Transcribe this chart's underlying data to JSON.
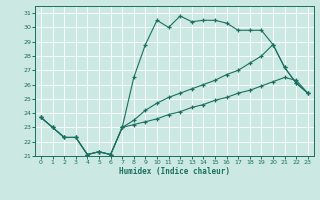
{
  "xlabel": "Humidex (Indice chaleur)",
  "bg_color": "#cce8e2",
  "line_color": "#1a7060",
  "grid_color": "#ffffff",
  "xlim": [
    -0.5,
    23.5
  ],
  "ylim": [
    21,
    31.5
  ],
  "yticks": [
    21,
    22,
    23,
    24,
    25,
    26,
    27,
    28,
    29,
    30,
    31
  ],
  "xticks": [
    0,
    1,
    2,
    3,
    4,
    5,
    6,
    7,
    8,
    9,
    10,
    11,
    12,
    13,
    14,
    15,
    16,
    17,
    18,
    19,
    20,
    21,
    22,
    23
  ],
  "line1_x": [
    0,
    1,
    2,
    3,
    4,
    5,
    6,
    7,
    8,
    9,
    10,
    11,
    12,
    13,
    14,
    15,
    16,
    17,
    18,
    19,
    20,
    21,
    22,
    23
  ],
  "line1_y": [
    23.7,
    23.0,
    22.3,
    22.3,
    21.1,
    21.3,
    21.1,
    23.0,
    26.5,
    28.8,
    30.5,
    30.0,
    30.8,
    30.4,
    30.5,
    30.5,
    30.3,
    29.8,
    29.8,
    29.8,
    28.8,
    27.2,
    26.1,
    25.4
  ],
  "line2_x": [
    0,
    1,
    2,
    3,
    4,
    5,
    6,
    7,
    8,
    9,
    10,
    11,
    12,
    13,
    14,
    15,
    16,
    17,
    18,
    19,
    20,
    21,
    22,
    23
  ],
  "line2_y": [
    23.7,
    23.0,
    22.3,
    22.3,
    21.1,
    21.3,
    21.1,
    23.0,
    23.5,
    24.2,
    24.7,
    25.1,
    25.4,
    25.7,
    26.0,
    26.3,
    26.7,
    27.0,
    27.5,
    28.0,
    28.8,
    27.2,
    26.1,
    25.4
  ],
  "line3_x": [
    0,
    1,
    2,
    3,
    4,
    5,
    6,
    7,
    8,
    9,
    10,
    11,
    12,
    13,
    14,
    15,
    16,
    17,
    18,
    19,
    20,
    21,
    22,
    23
  ],
  "line3_y": [
    23.7,
    23.0,
    22.3,
    22.3,
    21.1,
    21.3,
    21.1,
    23.0,
    23.2,
    23.4,
    23.6,
    23.9,
    24.1,
    24.4,
    24.6,
    24.9,
    25.1,
    25.4,
    25.6,
    25.9,
    26.2,
    26.5,
    26.3,
    25.4
  ]
}
